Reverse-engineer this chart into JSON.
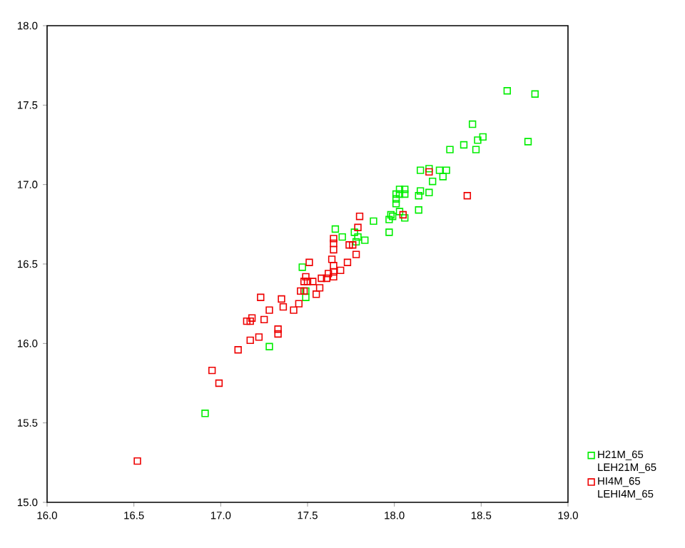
{
  "chart_data": {
    "type": "scatter",
    "marker": "square",
    "legend": "right",
    "xlim": [
      16.0,
      19.0
    ],
    "ylim": [
      15.0,
      18.0
    ],
    "xticks": [
      {
        "value": 16.0,
        "label": "16.0"
      },
      {
        "value": 16.5,
        "label": "16.5"
      },
      {
        "value": 17.0,
        "label": "17.0"
      },
      {
        "value": 17.5,
        "label": "17.5"
      },
      {
        "value": 18.0,
        "label": "18.0"
      },
      {
        "value": 18.5,
        "label": "18.5"
      },
      {
        "value": 19.0,
        "label": "19.0"
      }
    ],
    "yticks": [
      {
        "value": 15.0,
        "label": "15.0"
      },
      {
        "value": 15.5,
        "label": "15.5"
      },
      {
        "value": 16.0,
        "label": "16.0"
      },
      {
        "value": 16.5,
        "label": "16.5"
      },
      {
        "value": 17.0,
        "label": "17.0"
      },
      {
        "value": 17.5,
        "label": "17.5"
      },
      {
        "value": 18.0,
        "label": "18.0"
      }
    ],
    "series": [
      {
        "name": "H21M_65 LEH21M_65",
        "color": "#00ee00",
        "x": [
          16.91,
          17.28,
          17.49,
          17.49,
          17.47,
          17.66,
          17.7,
          17.77,
          17.79,
          17.78,
          17.83,
          17.88,
          18.65,
          18.81,
          18.45,
          18.51,
          18.48,
          18.4,
          18.47,
          18.77,
          18.32,
          18.15,
          18.2,
          18.26,
          18.3,
          18.28,
          18.22,
          18.03,
          18.06,
          18.01,
          18.03,
          18.06,
          18.15,
          18.14,
          18.2,
          18.01,
          18.01,
          18.14,
          18.03,
          18.06,
          17.98,
          17.97,
          17.99,
          17.97
        ],
        "values": [
          15.56,
          15.98,
          16.29,
          16.33,
          16.48,
          16.72,
          16.67,
          16.7,
          16.67,
          16.64,
          16.65,
          16.77,
          17.59,
          17.57,
          17.38,
          17.3,
          17.28,
          17.25,
          17.22,
          17.27,
          17.22,
          17.09,
          17.1,
          17.09,
          17.09,
          17.05,
          17.02,
          16.97,
          16.97,
          16.94,
          16.94,
          16.94,
          16.96,
          16.93,
          16.95,
          16.91,
          16.88,
          16.84,
          16.83,
          16.79,
          16.81,
          16.78,
          16.8,
          16.7
        ]
      },
      {
        "name": "HI4M_65 LEHI4M_65",
        "color": "#ee0000",
        "x": [
          16.52,
          16.95,
          16.99,
          17.1,
          17.17,
          17.22,
          17.33,
          17.33,
          17.25,
          17.15,
          17.17,
          17.18,
          17.28,
          17.23,
          17.35,
          17.36,
          17.42,
          17.45,
          17.46,
          17.48,
          17.55,
          17.57,
          17.49,
          17.48,
          17.5,
          17.53,
          17.51,
          17.58,
          17.61,
          17.62,
          17.65,
          17.65,
          17.69,
          17.65,
          17.64,
          17.73,
          17.65,
          17.65,
          17.65,
          17.74,
          17.76,
          17.78,
          17.79,
          17.8,
          18.2,
          18.42,
          18.05
        ],
        "values": [
          15.26,
          15.83,
          15.75,
          15.96,
          16.02,
          16.04,
          16.09,
          16.06,
          16.15,
          16.14,
          16.14,
          16.16,
          16.21,
          16.29,
          16.28,
          16.23,
          16.21,
          16.25,
          16.33,
          16.33,
          16.31,
          16.35,
          16.42,
          16.39,
          16.39,
          16.39,
          16.51,
          16.41,
          16.41,
          16.44,
          16.42,
          16.45,
          16.46,
          16.49,
          16.53,
          16.51,
          16.66,
          16.63,
          16.59,
          16.62,
          16.62,
          16.56,
          16.73,
          16.8,
          17.08,
          16.93,
          16.81
        ]
      }
    ]
  }
}
